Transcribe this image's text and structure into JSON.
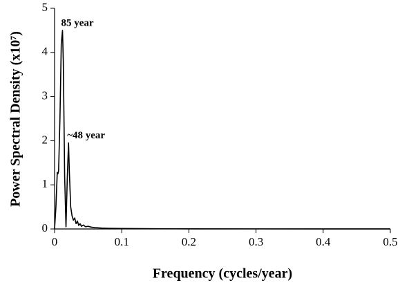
{
  "chart_data": {
    "type": "line",
    "xlabel": "Frequency (cycles/year)",
    "ylabel": "Power Spectral Density (x10⁷)",
    "annotations": [
      "85 year",
      "~48 year"
    ],
    "x": [
      0,
      0.002,
      0.004,
      0.005,
      0.006,
      0.008,
      0.01,
      0.0118,
      0.013,
      0.015,
      0.017,
      0.019,
      0.0208,
      0.022,
      0.024,
      0.026,
      0.028,
      0.03,
      0.032,
      0.034,
      0.036,
      0.038,
      0.04,
      0.043,
      0.046,
      0.05,
      0.055,
      0.06,
      0.07,
      0.08,
      0.1,
      0.15,
      0.2,
      0.3,
      0.4,
      0.5
    ],
    "series": [
      {
        "color": "#000000",
        "values": [
          0,
          0.5,
          1.28,
          1.25,
          1.32,
          2.5,
          4.2,
          4.5,
          3.8,
          1.2,
          0.05,
          1.2,
          1.95,
          1.3,
          0.5,
          0.3,
          0.2,
          0.25,
          0.12,
          0.18,
          0.08,
          0.12,
          0.06,
          0.09,
          0.05,
          0.06,
          0.04,
          0.03,
          0.02,
          0.015,
          0.01,
          0.005,
          0.003,
          0.002,
          0.001,
          0.001
        ]
      }
    ],
    "xlim": [
      0,
      0.5
    ],
    "xticks": [
      0,
      0.1,
      0.2,
      0.3,
      0.4,
      0.5
    ],
    "ylim": [
      0,
      5
    ],
    "yticks": [
      0,
      1,
      2,
      3,
      4,
      5
    ]
  }
}
